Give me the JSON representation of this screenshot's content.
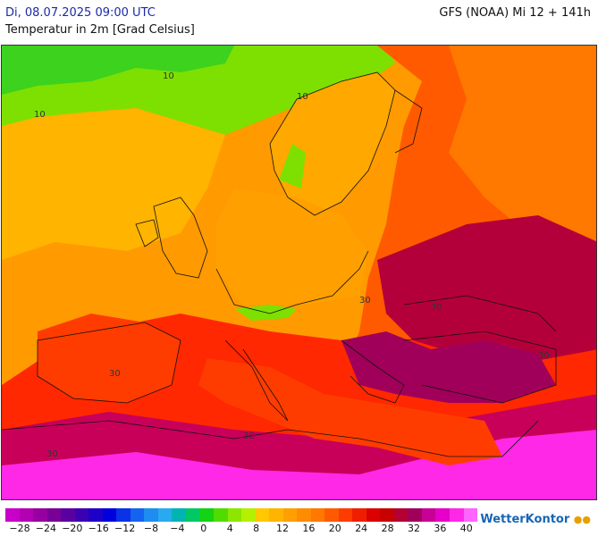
{
  "header": {
    "datetime": "Di, 08.07.2025 09:00 UTC",
    "subtitle": "Temperatur in 2m [Grad Celsius]",
    "model": "GFS (NOAA) Mi 12 + 141h"
  },
  "map_labels": {
    "isotherm_10": "10",
    "isotherm_30": "30"
  },
  "legend": {
    "colors": [
      "#c800c8",
      "#b400b4",
      "#9600a0",
      "#780096",
      "#5a00a0",
      "#3c00b4",
      "#1e00c8",
      "#0000dc",
      "#0a32e6",
      "#1464f0",
      "#1e8cf0",
      "#28aaf0",
      "#00b4b4",
      "#00c864",
      "#14d214",
      "#50dc00",
      "#8ce600",
      "#b4f000",
      "#ffc800",
      "#ffb400",
      "#ffa000",
      "#ff8c00",
      "#ff7800",
      "#ff5a00",
      "#ff3c00",
      "#f01e00",
      "#dc0000",
      "#c80000",
      "#b40032",
      "#a0005a",
      "#c80096",
      "#e600c8",
      "#ff28e6",
      "#ff64ff"
    ],
    "ticks": [
      "−28",
      "−24",
      "−20",
      "−16",
      "−12",
      "−8",
      "−4",
      "0",
      "4",
      "8",
      "12",
      "16",
      "20",
      "24",
      "28",
      "32",
      "36",
      "40"
    ]
  },
  "brand": {
    "name": "WetterKontor",
    "mark": "●●"
  }
}
